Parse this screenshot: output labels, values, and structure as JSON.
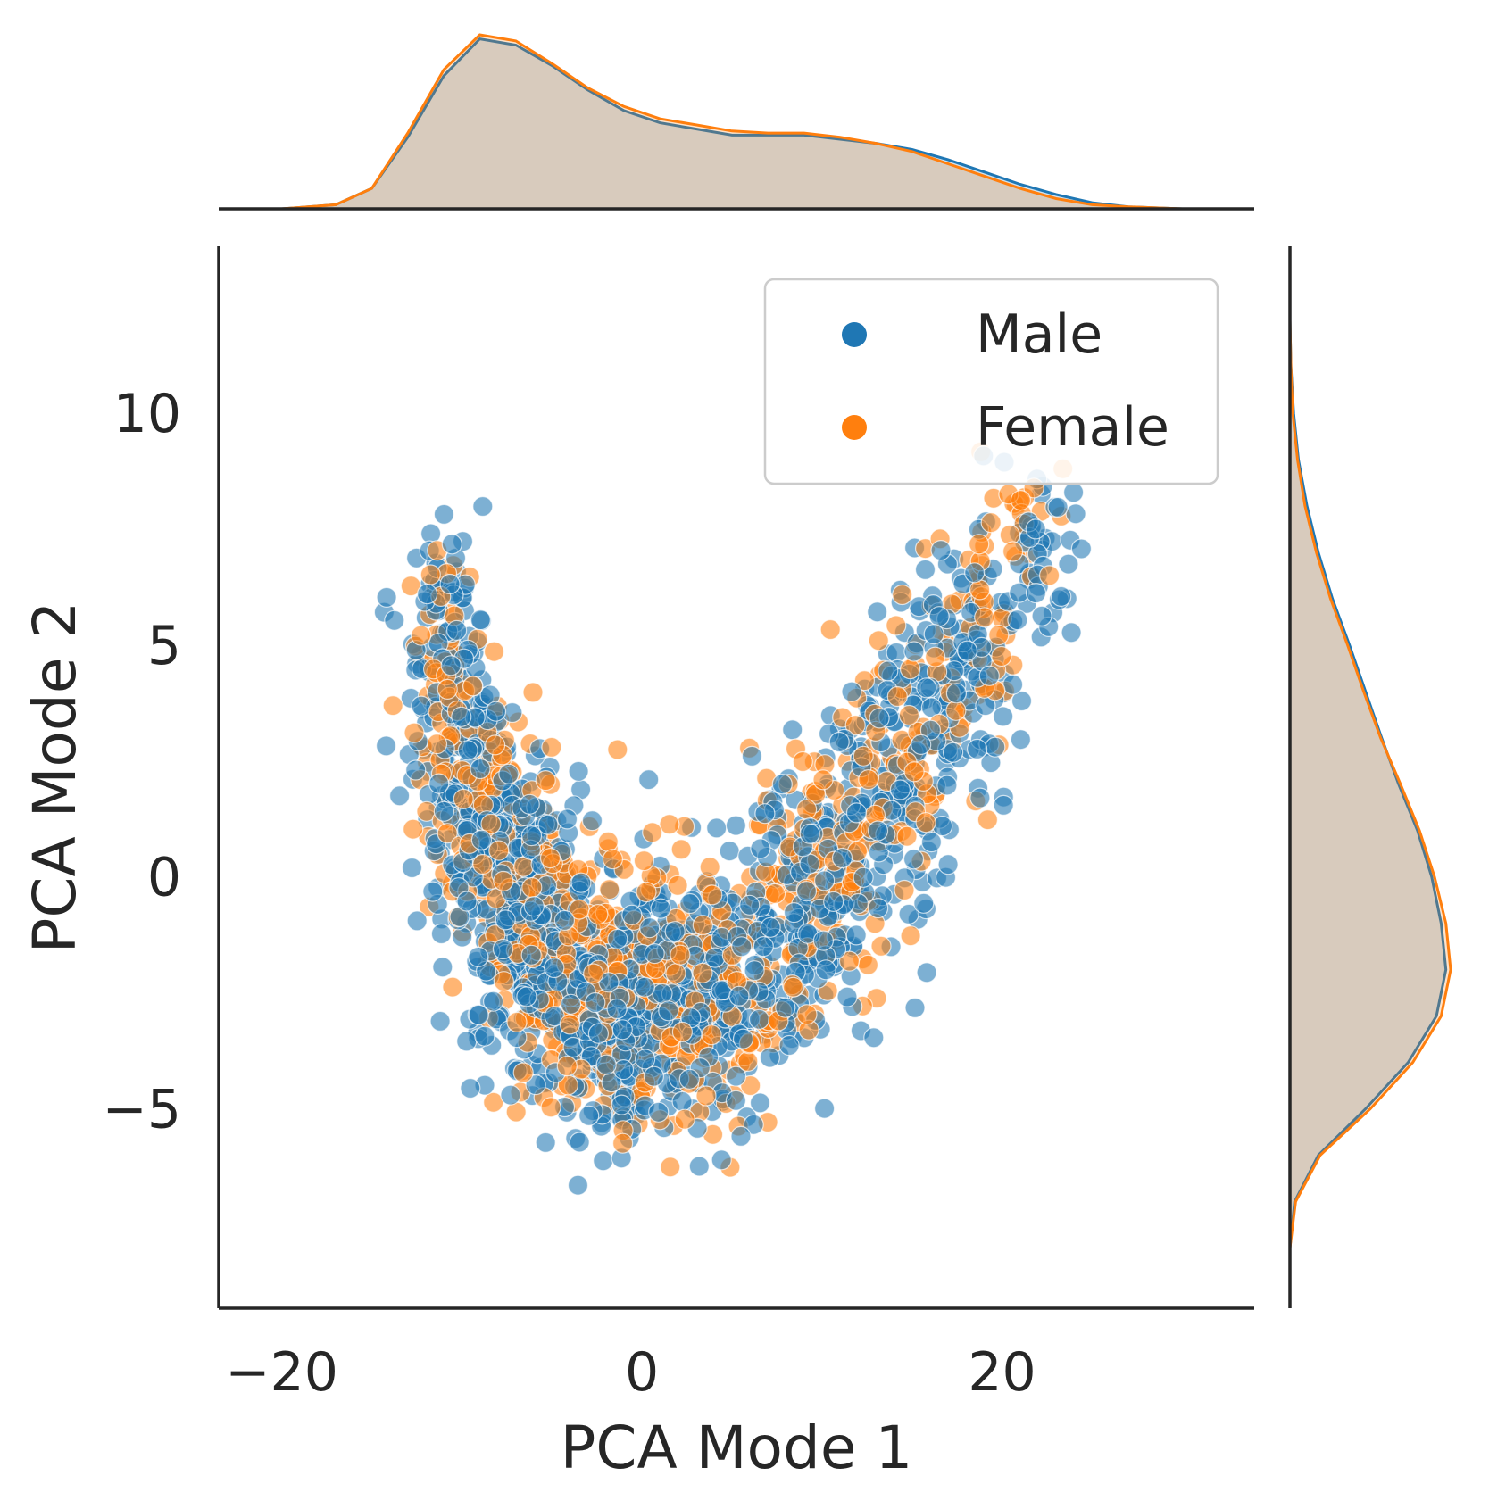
{
  "chart_data": {
    "type": "scatter",
    "title": "",
    "xlabel": "PCA Mode 1",
    "ylabel": "PCA Mode 2",
    "xlim": [
      -23.5,
      34
    ],
    "ylim": [
      -9.3,
      13.6
    ],
    "xticks": [
      -20,
      0,
      20
    ],
    "xtick_labels": [
      "−20",
      "0",
      "20"
    ],
    "yticks": [
      -5,
      0,
      5,
      10
    ],
    "ytick_labels": [
      "−5",
      "0",
      "5",
      "10"
    ],
    "grid": false,
    "legend_position": "top-right",
    "marginals": "kde",
    "series": [
      {
        "name": "Male",
        "color": "#1f77b4",
        "n_points": 1500,
        "distribution": [
          {
            "x": -11,
            "y": 4.5,
            "sx": 1.2,
            "sy": 1.5,
            "w": 0.08
          },
          {
            "x": -9,
            "y": 1.5,
            "sx": 1.5,
            "sy": 1.5,
            "w": 0.12
          },
          {
            "x": -6,
            "y": -1,
            "sx": 1.7,
            "sy": 1.5,
            "w": 0.15
          },
          {
            "x": -2,
            "y": -3,
            "sx": 2.0,
            "sy": 1.3,
            "w": 0.18
          },
          {
            "x": 3,
            "y": -2.5,
            "sx": 2.5,
            "sy": 1.4,
            "w": 0.15
          },
          {
            "x": 9,
            "y": -0.5,
            "sx": 2.2,
            "sy": 1.5,
            "w": 0.12
          },
          {
            "x": 14,
            "y": 2,
            "sx": 2.0,
            "sy": 1.5,
            "w": 0.1
          },
          {
            "x": 18,
            "y": 4.5,
            "sx": 2.0,
            "sy": 1.2,
            "w": 0.07
          },
          {
            "x": 22,
            "y": 7,
            "sx": 1.3,
            "sy": 0.9,
            "w": 0.03
          }
        ],
        "x_density": {
          "x": [
            -20,
            -17,
            -15,
            -13,
            -11,
            -9,
            -7,
            -5,
            -3,
            -1,
            1,
            3,
            5,
            7,
            9,
            11,
            13,
            15,
            17,
            19,
            21,
            23,
            25,
            27,
            30
          ],
          "density": [
            0.0,
            0.002,
            0.01,
            0.035,
            0.065,
            0.083,
            0.08,
            0.07,
            0.058,
            0.048,
            0.042,
            0.039,
            0.036,
            0.036,
            0.036,
            0.034,
            0.032,
            0.029,
            0.024,
            0.018,
            0.012,
            0.007,
            0.003,
            0.001,
            0.0
          ]
        },
        "y_density": {
          "y": [
            -9.3,
            -8,
            -7,
            -6,
            -5,
            -4,
            -3,
            -2,
            -1,
            0,
            1,
            2,
            3,
            4,
            5,
            6,
            7,
            8,
            9,
            10,
            11,
            12
          ],
          "density": [
            0.0,
            0.0,
            0.005,
            0.03,
            0.08,
            0.125,
            0.155,
            0.165,
            0.16,
            0.15,
            0.135,
            0.115,
            0.097,
            0.08,
            0.063,
            0.045,
            0.03,
            0.018,
            0.009,
            0.004,
            0.001,
            0.0
          ]
        }
      },
      {
        "name": "Female",
        "color": "#ff7f0e",
        "n_points": 900,
        "distribution": [
          {
            "x": -11,
            "y": 4.0,
            "sx": 1.2,
            "sy": 1.5,
            "w": 0.08
          },
          {
            "x": -9,
            "y": 1.5,
            "sx": 1.5,
            "sy": 1.5,
            "w": 0.12
          },
          {
            "x": -5,
            "y": -1.5,
            "sx": 2.0,
            "sy": 1.5,
            "w": 0.17
          },
          {
            "x": -1,
            "y": -2.5,
            "sx": 2.2,
            "sy": 1.4,
            "w": 0.2
          },
          {
            "x": 4,
            "y": -2.5,
            "sx": 2.2,
            "sy": 1.4,
            "w": 0.15
          },
          {
            "x": 10,
            "y": 0,
            "sx": 2.0,
            "sy": 1.5,
            "w": 0.12
          },
          {
            "x": 14,
            "y": 2.5,
            "sx": 2.0,
            "sy": 1.5,
            "w": 0.09
          },
          {
            "x": 18,
            "y": 5,
            "sx": 1.8,
            "sy": 1.2,
            "w": 0.05
          },
          {
            "x": 21,
            "y": 7.5,
            "sx": 1.3,
            "sy": 0.9,
            "w": 0.02
          }
        ],
        "x_density": {
          "x": [
            -20,
            -17,
            -15,
            -13,
            -11,
            -9,
            -7,
            -5,
            -3,
            -1,
            1,
            3,
            5,
            7,
            9,
            11,
            13,
            15,
            17,
            19,
            21,
            23,
            25,
            27,
            30
          ],
          "density": [
            0.0,
            0.002,
            0.01,
            0.037,
            0.068,
            0.085,
            0.082,
            0.071,
            0.059,
            0.05,
            0.044,
            0.041,
            0.038,
            0.037,
            0.037,
            0.035,
            0.032,
            0.028,
            0.022,
            0.016,
            0.01,
            0.005,
            0.002,
            0.001,
            0.0
          ]
        },
        "y_density": {
          "y": [
            -9.3,
            -8,
            -7,
            -6,
            -5,
            -4,
            -3,
            -2,
            -1,
            0,
            1,
            2,
            3,
            4,
            5,
            6,
            7,
            8,
            9,
            10,
            11,
            12
          ],
          "density": [
            0.0,
            0.0,
            0.006,
            0.032,
            0.085,
            0.13,
            0.16,
            0.17,
            0.165,
            0.153,
            0.137,
            0.117,
            0.096,
            0.078,
            0.061,
            0.043,
            0.028,
            0.016,
            0.008,
            0.003,
            0.001,
            0.0
          ]
        }
      }
    ]
  }
}
